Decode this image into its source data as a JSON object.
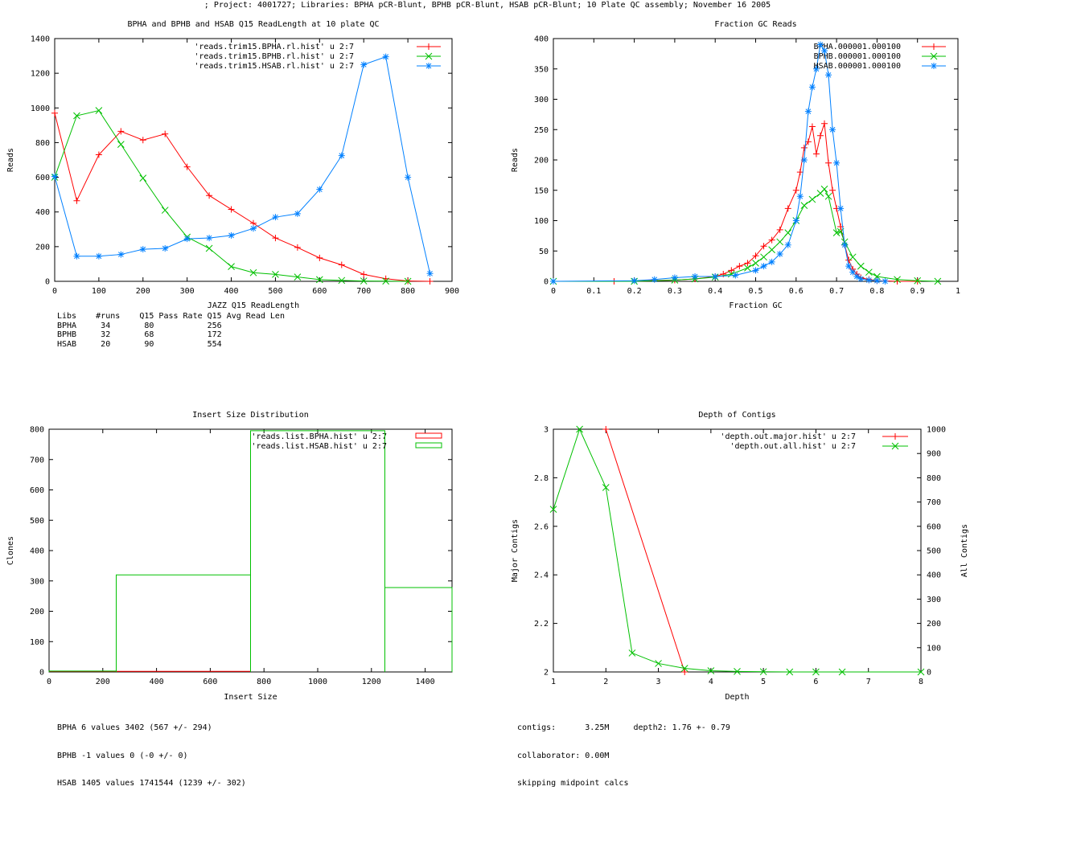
{
  "page_title": "; Project: 4001727; Libraries: BPHA pCR-Blunt, BPHB pCR-Blunt, HSAB pCR-Blunt; 10 Plate QC assembly; November 16 2005",
  "colors": {
    "red": "#ff0000",
    "green": "#00c000",
    "blue": "#0080ff",
    "axis": "#000000"
  },
  "chart_data": [
    {
      "type": "line",
      "title": "BPHA and BPHB and HSAB Q15 ReadLength at 10 plate QC",
      "xlabel": "JAZZ Q15 ReadLength",
      "ylabel": "Reads",
      "xlim": [
        0,
        900
      ],
      "ylim": [
        0,
        1400
      ],
      "xticks": [
        0,
        100,
        200,
        300,
        400,
        500,
        600,
        700,
        800,
        900
      ],
      "yticks": [
        0,
        200,
        400,
        600,
        800,
        1000,
        1200,
        1400
      ],
      "grid": false,
      "legend_position": "top-right",
      "series": [
        {
          "name": "'reads.trim15.BPHA.rl.hist' u 2:7",
          "color": "#ff0000",
          "marker": "plus",
          "x": [
            0,
            50,
            100,
            150,
            200,
            250,
            300,
            350,
            400,
            450,
            500,
            550,
            600,
            650,
            700,
            750,
            800,
            850
          ],
          "y": [
            970,
            465,
            730,
            865,
            815,
            850,
            660,
            495,
            415,
            335,
            250,
            195,
            135,
            95,
            40,
            15,
            2,
            0
          ]
        },
        {
          "name": "'reads.trim15.BPHB.rl.hist' u 2:7",
          "color": "#00c000",
          "marker": "x",
          "x": [
            0,
            50,
            100,
            150,
            200,
            250,
            300,
            350,
            400,
            450,
            500,
            550,
            600,
            650,
            700,
            750,
            800
          ],
          "y": [
            600,
            955,
            985,
            790,
            595,
            410,
            255,
            190,
            85,
            50,
            40,
            25,
            10,
            5,
            2,
            1,
            0
          ]
        },
        {
          "name": "'reads.trim15.HSAB.rl.hist' u 2:7",
          "color": "#0080ff",
          "marker": "star",
          "x": [
            0,
            50,
            100,
            150,
            200,
            250,
            300,
            350,
            400,
            450,
            500,
            550,
            600,
            650,
            700,
            750,
            800,
            850
          ],
          "y": [
            605,
            145,
            145,
            155,
            185,
            190,
            245,
            250,
            265,
            305,
            370,
            390,
            530,
            725,
            1250,
            1295,
            600,
            45
          ]
        }
      ],
      "stats_table": {
        "header": [
          "Libs",
          "#runs",
          "Q15 Pass Rate",
          "Q15 Avg Read Len"
        ],
        "rows": [
          [
            "BPHA",
            "34",
            "80",
            "256"
          ],
          [
            "BPHB",
            "32",
            "68",
            "172"
          ],
          [
            "HSAB",
            "20",
            "90",
            "554"
          ]
        ]
      }
    },
    {
      "type": "line",
      "title": "Fraction GC Reads",
      "xlabel": "Fraction GC",
      "ylabel": "Reads",
      "xlim": [
        0,
        1
      ],
      "ylim": [
        0,
        400
      ],
      "xticks": [
        0,
        0.1,
        0.2,
        0.3,
        0.4,
        0.5,
        0.6,
        0.7,
        0.8,
        0.9,
        1
      ],
      "yticks": [
        0,
        50,
        100,
        150,
        200,
        250,
        300,
        350,
        400
      ],
      "grid": false,
      "legend_position": "top-right",
      "series": [
        {
          "name": "BPHA.000001.000100",
          "color": "#ff0000",
          "marker": "plus",
          "x": [
            0,
            0.15,
            0.3,
            0.35,
            0.4,
            0.42,
            0.44,
            0.46,
            0.48,
            0.5,
            0.52,
            0.54,
            0.56,
            0.58,
            0.6,
            0.61,
            0.62,
            0.63,
            0.64,
            0.65,
            0.66,
            0.67,
            0.68,
            0.69,
            0.7,
            0.71,
            0.72,
            0.73,
            0.74,
            0.75,
            0.76,
            0.78,
            0.8,
            0.85,
            0.9
          ],
          "y": [
            0,
            0,
            2,
            4,
            8,
            12,
            18,
            25,
            30,
            42,
            58,
            68,
            85,
            120,
            150,
            180,
            220,
            230,
            255,
            210,
            240,
            260,
            195,
            150,
            120,
            90,
            60,
            35,
            20,
            12,
            6,
            3,
            1,
            0,
            0
          ]
        },
        {
          "name": "BPHB.000001.000100",
          "color": "#00c000",
          "marker": "x",
          "x": [
            0,
            0.2,
            0.3,
            0.35,
            0.4,
            0.44,
            0.48,
            0.5,
            0.52,
            0.54,
            0.56,
            0.58,
            0.6,
            0.62,
            0.64,
            0.66,
            0.67,
            0.68,
            0.7,
            0.71,
            0.72,
            0.74,
            0.76,
            0.78,
            0.8,
            0.85,
            0.9,
            0.95
          ],
          "y": [
            0,
            0,
            2,
            4,
            7,
            12,
            22,
            30,
            40,
            52,
            65,
            80,
            100,
            125,
            135,
            145,
            152,
            140,
            80,
            82,
            65,
            40,
            25,
            15,
            8,
            3,
            1,
            0
          ]
        },
        {
          "name": "HSAB.000001.000100",
          "color": "#0080ff",
          "marker": "star",
          "x": [
            0,
            0.2,
            0.25,
            0.3,
            0.35,
            0.4,
            0.45,
            0.5,
            0.52,
            0.54,
            0.56,
            0.58,
            0.6,
            0.61,
            0.62,
            0.63,
            0.64,
            0.65,
            0.66,
            0.67,
            0.68,
            0.69,
            0.7,
            0.71,
            0.72,
            0.73,
            0.74,
            0.75,
            0.76,
            0.78,
            0.8,
            0.82
          ],
          "y": [
            0,
            1,
            3,
            6,
            8,
            8,
            10,
            18,
            25,
            32,
            45,
            60,
            100,
            140,
            200,
            280,
            320,
            350,
            390,
            380,
            340,
            250,
            195,
            120,
            60,
            25,
            15,
            8,
            4,
            2,
            1,
            0
          ]
        }
      ]
    },
    {
      "type": "histogram",
      "title": "Insert Size Distribution",
      "xlabel": "Insert Size",
      "ylabel": "Clones",
      "xlim": [
        0,
        1500
      ],
      "ylim": [
        0,
        800
      ],
      "xticks": [
        0,
        200,
        400,
        600,
        800,
        1000,
        1200,
        1400
      ],
      "yticks": [
        0,
        100,
        200,
        300,
        400,
        500,
        600,
        700,
        800
      ],
      "grid": false,
      "legend_position": "top-right",
      "series": [
        {
          "name": "'reads.list.BPHA.hist' u 2:7",
          "color": "#ff0000",
          "bins": [
            [
              0,
              250,
              2
            ],
            [
              250,
              750,
              2
            ]
          ]
        },
        {
          "name": "'reads.list.HSAB.hist' u 2:7",
          "color": "#00c000",
          "bins": [
            [
              0,
              250,
              3
            ],
            [
              250,
              750,
              320
            ],
            [
              750,
              1250,
              795
            ],
            [
              1250,
              1500,
              278
            ]
          ]
        }
      ],
      "stats_lines": [
        "BPHA 6 values 3402 (567 +/- 294)",
        "BPHB -1 values 0 (-0 +/- 0)",
        "HSAB 1405 values 1741544 (1239 +/- 302)"
      ]
    },
    {
      "type": "line",
      "title": "Depth of Contigs",
      "xlabel": "Depth",
      "ylabel": "Major Contigs",
      "y2label": "All Contigs",
      "xlim": [
        1,
        8
      ],
      "ylim": [
        2,
        3
      ],
      "y2lim": [
        0,
        1000
      ],
      "xticks": [
        1,
        2,
        3,
        4,
        5,
        6,
        7,
        8
      ],
      "yticks": [
        2,
        2.2,
        2.4,
        2.6,
        2.8,
        3
      ],
      "y2ticks": [
        0,
        100,
        200,
        300,
        400,
        500,
        600,
        700,
        800,
        900,
        1000
      ],
      "grid": false,
      "legend_position": "top-right",
      "series": [
        {
          "name": "'depth.out.major.hist' u 2:7",
          "color": "#ff0000",
          "marker": "plus",
          "axis": "y1",
          "x": [
            2,
            3.5
          ],
          "y": [
            3,
            2
          ]
        },
        {
          "name": "'depth.out.all.hist' u 2:7",
          "color": "#00c000",
          "marker": "x",
          "axis": "y2",
          "x": [
            1,
            1.5,
            2,
            2.5,
            3,
            3.5,
            4,
            4.5,
            5,
            5.5,
            6,
            6.5,
            8
          ],
          "y": [
            670,
            1000,
            760,
            78,
            35,
            15,
            5,
            2,
            1,
            0,
            0,
            0,
            0
          ]
        }
      ],
      "stats_lines": [
        "contigs:      3.25M     depth2: 1.76 +- 0.79",
        "collaborator: 0.00M",
        "skipping midpoint calcs"
      ]
    }
  ]
}
